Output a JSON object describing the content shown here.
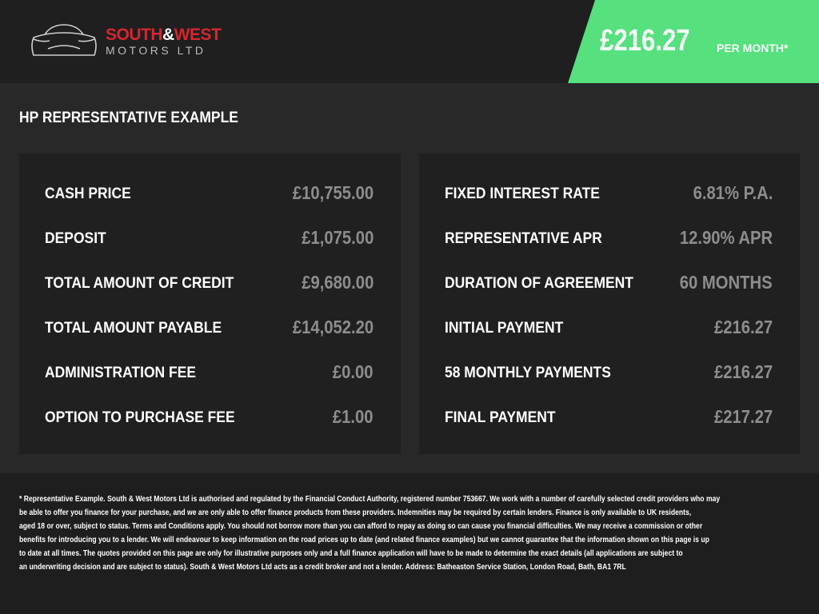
{
  "header": {
    "logo": {
      "brand_main": "SOUTH",
      "brand_amp": "&",
      "brand_second": "WEST",
      "brand_sub": "MOTORS LTD"
    },
    "price": {
      "amount": "£216.27",
      "label": "PER MONTH*",
      "color": "#56e07e"
    }
  },
  "section_title": "HP REPRESENTATIVE EXAMPLE",
  "left_panel": [
    {
      "label": "CASH PRICE",
      "value": "£10,755.00"
    },
    {
      "label": "DEPOSIT",
      "value": "£1,075.00"
    },
    {
      "label": "TOTAL AMOUNT OF CREDIT",
      "value": "£9,680.00"
    },
    {
      "label": "TOTAL AMOUNT PAYABLE",
      "value": "£14,052.20"
    },
    {
      "label": "ADMINISTRATION FEE",
      "value": "£0.00"
    },
    {
      "label": "OPTION TO PURCHASE FEE",
      "value": "£1.00"
    }
  ],
  "right_panel": [
    {
      "label": "FIXED INTEREST RATE",
      "value": "6.81% P.A."
    },
    {
      "label": "REPRESENTATIVE APR",
      "value": "12.90% APR"
    },
    {
      "label": "DURATION OF AGREEMENT",
      "value": "60 MONTHS"
    },
    {
      "label": "INITIAL PAYMENT",
      "value": "£216.27"
    },
    {
      "label": "58 MONTHLY PAYMENTS",
      "value": "£216.27"
    },
    {
      "label": "FINAL PAYMENT",
      "value": "£217.27"
    }
  ],
  "disclaimer_lines": [
    "* Representative Example. South & West Motors Ltd is authorised and regulated by the Financial Conduct Authority, registered number 753667. We work with a number of carefully selected credit providers who may",
    "be able to offer you finance for your purchase, and we are only able to offer finance products from these providers. Indemnities may be required by certain lenders. Finance is only available to UK residents,",
    "aged 18 or over, subject to status. Terms and Conditions apply. You should not borrow more than you can afford to repay as doing so can cause you financial difficulties. We may receive a commission or other",
    "benefits for introducing you to a lender. We will endeavour to keep information on the road prices up to date (and related finance examples) but we cannot guarantee that the information shown on this page is up",
    "to date at all times. The quotes provided on this page are only for illustrative purposes only and a full finance application will have to be made to determine the exact details (all applications are subject to",
    "an underwriting decision and are subject to status). South & West Motors Ltd acts as a credit broker and not a lender. Address: Batheaston Service Station, London Road, Bath, BA1 7RL"
  ]
}
